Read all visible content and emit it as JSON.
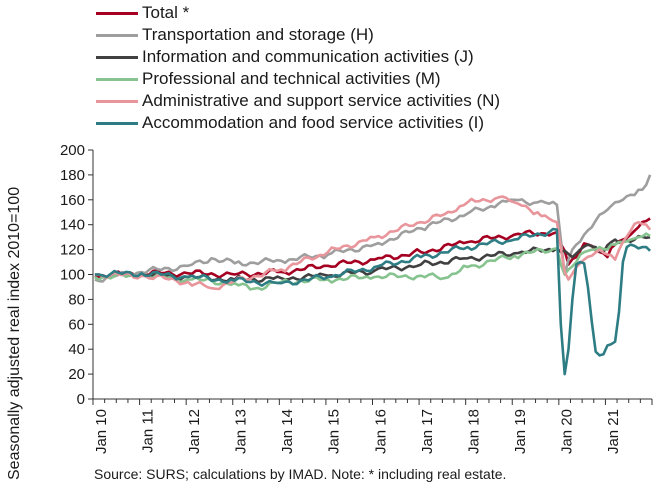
{
  "chart_data": {
    "type": "line",
    "title": "",
    "xlabel": "",
    "ylabel": "Seasonally adjusted real index 2010=100",
    "ylim": [
      0,
      200
    ],
    "yticks": [
      0,
      20,
      40,
      60,
      80,
      100,
      120,
      140,
      160,
      180,
      200
    ],
    "xticks": [
      "Jan 10",
      "Jan 11",
      "Jan 12",
      "Jan 13",
      "Jan 14",
      "Jan 15",
      "Jan 16",
      "Jan 17",
      "Jan 18",
      "Jan 19",
      "Jan 20",
      "Jan 21"
    ],
    "x_start": "Jan 2010",
    "x_end": "Dec 2021",
    "frequency": "monthly",
    "grid": false,
    "legend_position": "top",
    "footnote": "Source:  SURS; calculations by IMAD. Note: * including real estate.",
    "series": [
      {
        "name": "Total *",
        "color": "#a50021",
        "anchors": [
          [
            0,
            99
          ],
          [
            12,
            101
          ],
          [
            24,
            101
          ],
          [
            36,
            100
          ],
          [
            48,
            102
          ],
          [
            60,
            107
          ],
          [
            72,
            112
          ],
          [
            84,
            118
          ],
          [
            96,
            126
          ],
          [
            108,
            132
          ],
          [
            119,
            134
          ],
          [
            121,
            119
          ],
          [
            122,
            108
          ],
          [
            124,
            114
          ],
          [
            126,
            125
          ],
          [
            128,
            123
          ],
          [
            130,
            118
          ],
          [
            132,
            114
          ],
          [
            134,
            124
          ],
          [
            136,
            128
          ],
          [
            138,
            132
          ],
          [
            140,
            138
          ],
          [
            142,
            143
          ],
          [
            143,
            145
          ]
        ]
      },
      {
        "name": "Transportation and storage (H)",
        "color": "#9e9e9e",
        "anchors": [
          [
            0,
            96
          ],
          [
            12,
            102
          ],
          [
            24,
            107
          ],
          [
            30,
            113
          ],
          [
            36,
            109
          ],
          [
            48,
            111
          ],
          [
            60,
            116
          ],
          [
            72,
            124
          ],
          [
            84,
            137
          ],
          [
            96,
            149
          ],
          [
            104,
            157
          ],
          [
            108,
            160
          ],
          [
            114,
            158
          ],
          [
            119,
            156
          ],
          [
            121,
            100
          ],
          [
            122,
            112
          ],
          [
            124,
            124
          ],
          [
            126,
            132
          ],
          [
            128,
            138
          ],
          [
            130,
            148
          ],
          [
            132,
            152
          ],
          [
            134,
            158
          ],
          [
            136,
            160
          ],
          [
            138,
            164
          ],
          [
            140,
            168
          ],
          [
            142,
            172
          ],
          [
            143,
            180
          ]
        ]
      },
      {
        "name": "Information and communication activities (J)",
        "color": "#404040",
        "anchors": [
          [
            0,
            100
          ],
          [
            12,
            100
          ],
          [
            24,
            98
          ],
          [
            36,
            96
          ],
          [
            48,
            97
          ],
          [
            60,
            99
          ],
          [
            72,
            103
          ],
          [
            84,
            108
          ],
          [
            96,
            113
          ],
          [
            108,
            117
          ],
          [
            119,
            121
          ],
          [
            121,
            119
          ],
          [
            123,
            114
          ],
          [
            125,
            120
          ],
          [
            127,
            124
          ],
          [
            129,
            122
          ],
          [
            131,
            118
          ],
          [
            133,
            126
          ],
          [
            136,
            127
          ],
          [
            139,
            128
          ],
          [
            143,
            130
          ]
        ]
      },
      {
        "name": "Professional and technical activities (M)",
        "color": "#86c38f",
        "anchors": [
          [
            0,
            98
          ],
          [
            12,
            99
          ],
          [
            24,
            96
          ],
          [
            36,
            93
          ],
          [
            40,
            88
          ],
          [
            48,
            94
          ],
          [
            60,
            96
          ],
          [
            72,
            98
          ],
          [
            84,
            99
          ],
          [
            90,
            97
          ],
          [
            96,
            106
          ],
          [
            108,
            115
          ],
          [
            119,
            121
          ],
          [
            121,
            100
          ],
          [
            122,
            104
          ],
          [
            124,
            110
          ],
          [
            126,
            118
          ],
          [
            128,
            120
          ],
          [
            130,
            122
          ],
          [
            132,
            120
          ],
          [
            134,
            124
          ],
          [
            136,
            126
          ],
          [
            138,
            128
          ],
          [
            140,
            130
          ],
          [
            143,
            131
          ]
        ]
      },
      {
        "name": "Administrative and support service activities (N)",
        "color": "#e8959b",
        "anchors": [
          [
            0,
            100
          ],
          [
            12,
            99
          ],
          [
            24,
            94
          ],
          [
            30,
            89
          ],
          [
            36,
            95
          ],
          [
            48,
            104
          ],
          [
            60,
            118
          ],
          [
            72,
            130
          ],
          [
            84,
            142
          ],
          [
            92,
            150
          ],
          [
            96,
            158
          ],
          [
            104,
            162
          ],
          [
            108,
            158
          ],
          [
            114,
            150
          ],
          [
            119,
            142
          ],
          [
            121,
            102
          ],
          [
            122,
            96
          ],
          [
            124,
            106
          ],
          [
            126,
            112
          ],
          [
            128,
            115
          ],
          [
            130,
            120
          ],
          [
            132,
            116
          ],
          [
            134,
            112
          ],
          [
            136,
            126
          ],
          [
            138,
            135
          ],
          [
            140,
            142
          ],
          [
            142,
            140
          ],
          [
            143,
            136
          ]
        ]
      },
      {
        "name": "Accommodation and food service activities (I)",
        "color": "#2e7d84",
        "anchors": [
          [
            0,
            100
          ],
          [
            12,
            101
          ],
          [
            24,
            98
          ],
          [
            36,
            95
          ],
          [
            48,
            93
          ],
          [
            60,
            98
          ],
          [
            72,
            106
          ],
          [
            84,
            114
          ],
          [
            96,
            122
          ],
          [
            108,
            128
          ],
          [
            119,
            136
          ],
          [
            120,
            60
          ],
          [
            121,
            20
          ],
          [
            122,
            40
          ],
          [
            123,
            80
          ],
          [
            124,
            108
          ],
          [
            125,
            110
          ],
          [
            126,
            109
          ],
          [
            127,
            90
          ],
          [
            128,
            62
          ],
          [
            129,
            38
          ],
          [
            130,
            35
          ],
          [
            131,
            36
          ],
          [
            132,
            43
          ],
          [
            133,
            44
          ],
          [
            134,
            46
          ],
          [
            135,
            70
          ],
          [
            136,
            110
          ],
          [
            137,
            122
          ],
          [
            138,
            124
          ],
          [
            139,
            123
          ],
          [
            140,
            121
          ],
          [
            141,
            122
          ],
          [
            142,
            122
          ],
          [
            143,
            119
          ]
        ]
      }
    ]
  }
}
